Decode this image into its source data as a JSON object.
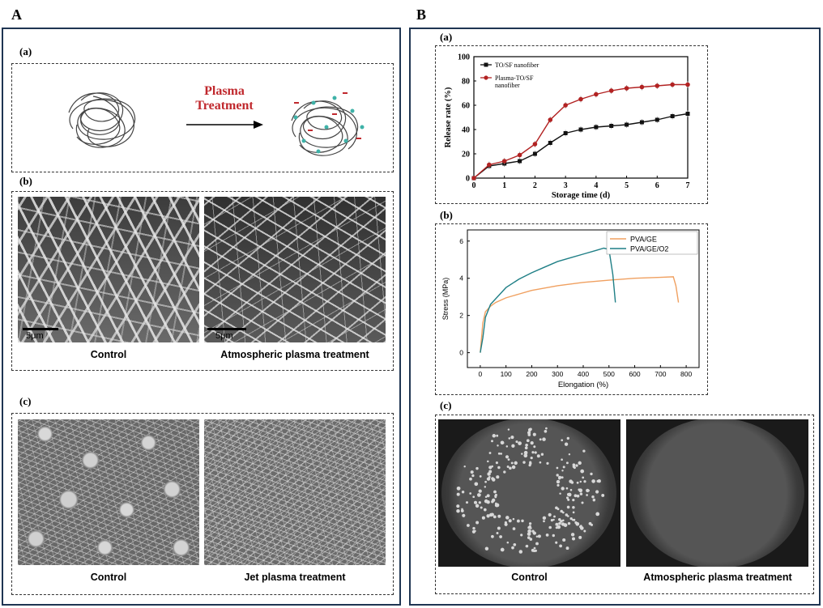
{
  "panels": {
    "A": "A",
    "B": "B"
  },
  "A": {
    "a": {
      "label": "(a)",
      "plasma_line1": "Plasma",
      "plasma_line2": "Treatment"
    },
    "b": {
      "label": "(b)",
      "scale_left": "5μm",
      "scale_right": "5μm",
      "caption_left": "Control",
      "caption_right": "Atmospheric plasma treatment"
    },
    "c": {
      "label": "(c)",
      "caption_left": "Control",
      "caption_right": "Jet plasma treatment"
    }
  },
  "B": {
    "a": {
      "label": "(a)"
    },
    "b": {
      "label": "(b)"
    },
    "c": {
      "label": "(c)",
      "caption_left": "Control",
      "caption_right": "Atmospheric plasma treatment"
    }
  },
  "colors": {
    "frame": "#1f3552",
    "plasma_text": "#c0282d",
    "series_red": "#b22222",
    "series_black": "#111111",
    "pva_ge": "#f0a060",
    "pva_ge_o2": "#1f7f86"
  },
  "chart_data": [
    {
      "type": "line",
      "xlabel": "Storage time (d)",
      "ylabel": "Release rate (%)",
      "xlim": [
        0,
        7
      ],
      "ylim": [
        0,
        100
      ],
      "x_ticks": [
        0,
        1,
        2,
        3,
        4,
        5,
        6,
        7
      ],
      "y_ticks": [
        0,
        20,
        40,
        60,
        80,
        100
      ],
      "legend_position": "top-left",
      "grid": false,
      "series": [
        {
          "name": "TO/SF nanofiber",
          "color": "#111111",
          "marker": "square",
          "x": [
            0,
            0.5,
            1,
            1.5,
            2,
            2.5,
            3,
            3.5,
            4,
            4.5,
            5,
            5.5,
            6,
            6.5,
            7
          ],
          "y": [
            0,
            10,
            12,
            14,
            20,
            29,
            37,
            40,
            42,
            43,
            44,
            46,
            48,
            51,
            53
          ]
        },
        {
          "name": "Plasma-TO/SF nanofiber",
          "legend_lines": [
            "Plasma-TO/SF",
            "nanofiber"
          ],
          "color": "#b22222",
          "marker": "circle",
          "x": [
            0,
            0.5,
            1,
            1.5,
            2,
            2.5,
            3,
            3.5,
            4,
            4.5,
            5,
            5.5,
            6,
            6.5,
            7
          ],
          "y": [
            0,
            11,
            14,
            19,
            28,
            48,
            60,
            65,
            69,
            72,
            74,
            75,
            76,
            77,
            77
          ]
        }
      ]
    },
    {
      "type": "line",
      "xlabel": "Elongation (%)",
      "ylabel": "Stress (MPa)",
      "xlim": [
        -50,
        850
      ],
      "ylim": [
        -0.8,
        6.6
      ],
      "x_ticks": [
        0,
        100,
        200,
        300,
        400,
        500,
        600,
        700,
        800
      ],
      "y_ticks": [
        0,
        2,
        4,
        6
      ],
      "legend_position": "top-right",
      "grid": false,
      "series": [
        {
          "name": "PVA/GE",
          "color": "#f0a060",
          "x": [
            0,
            10,
            20,
            40,
            60,
            100,
            150,
            200,
            300,
            400,
            500,
            600,
            700,
            750,
            760,
            770
          ],
          "y": [
            0,
            1.6,
            2.2,
            2.5,
            2.7,
            2.95,
            3.15,
            3.35,
            3.6,
            3.78,
            3.9,
            4.0,
            4.05,
            4.08,
            3.6,
            2.7
          ]
        },
        {
          "name": "PVA/GE/O2",
          "color": "#1f7f86",
          "x": [
            0,
            10,
            20,
            40,
            60,
            80,
            100,
            150,
            200,
            250,
            300,
            350,
            400,
            450,
            480,
            500,
            515,
            525
          ],
          "y": [
            0,
            0.8,
            1.9,
            2.6,
            2.9,
            3.2,
            3.5,
            3.95,
            4.3,
            4.6,
            4.9,
            5.1,
            5.3,
            5.5,
            5.62,
            5.55,
            4.2,
            2.7
          ]
        }
      ]
    }
  ]
}
